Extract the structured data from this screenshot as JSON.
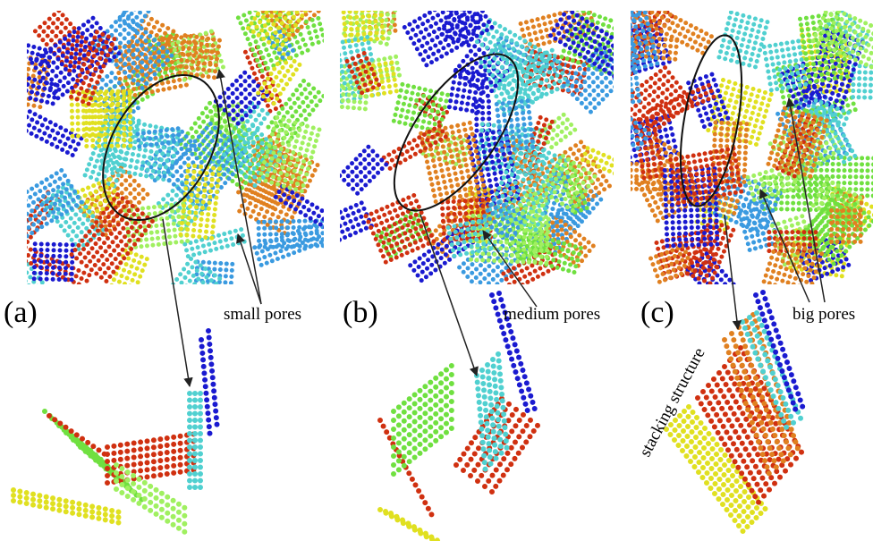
{
  "panels": [
    {
      "label": "(a)",
      "annotation": "small pores"
    },
    {
      "label": "(b)",
      "annotation": "medium pores"
    },
    {
      "label": "(c)",
      "annotation": "big pores"
    }
  ],
  "stacking_label": "stacking structure"
}
